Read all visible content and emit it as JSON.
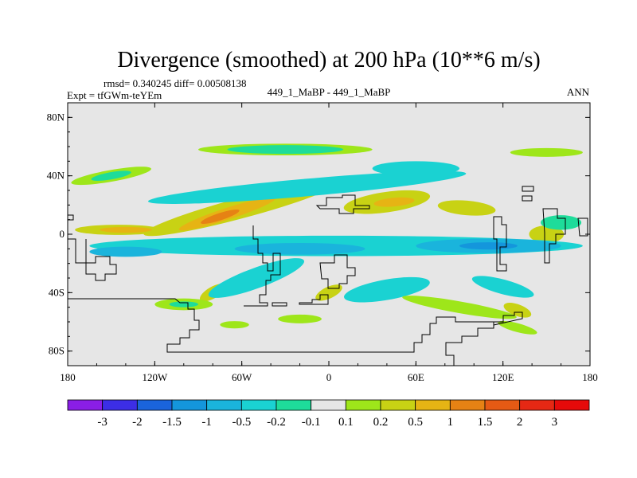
{
  "chart_data": {
    "type": "heatmap",
    "title": "Divergence (smoothed) at 200 hPa (10**6 m/s)",
    "stats_text": "rmsd= 0.340245 diff= 0.00508138",
    "left_label": "Expt = tfGWm-teYEm",
    "center_label": "449_1_MaBP - 449_1_MaBP",
    "right_label": "ANN",
    "xlim": [
      -180,
      180
    ],
    "ylim": [
      -90,
      90
    ],
    "x_ticks": [
      {
        "value": -180,
        "label": "180"
      },
      {
        "value": -120,
        "label": "120W"
      },
      {
        "value": -60,
        "label": "60W"
      },
      {
        "value": 0,
        "label": "0"
      },
      {
        "value": 60,
        "label": "60E"
      },
      {
        "value": 120,
        "label": "120E"
      },
      {
        "value": 180,
        "label": "180"
      }
    ],
    "y_ticks": [
      {
        "value": 80,
        "label": "80N"
      },
      {
        "value": 40,
        "label": "40N"
      },
      {
        "value": 0,
        "label": "0"
      },
      {
        "value": -40,
        "label": "40S"
      },
      {
        "value": -80,
        "label": "80S"
      }
    ],
    "levels": [
      "-3",
      "-2",
      "-1.5",
      "-1",
      "-0.5",
      "-0.2",
      "-0.1",
      "0.1",
      "0.2",
      "0.5",
      "1",
      "1.5",
      "2",
      "3"
    ],
    "colors": [
      "#8a1ee6",
      "#3c2ee6",
      "#1a64dc",
      "#1496dc",
      "#1ab4dc",
      "#1ad2d2",
      "#1edc9a",
      "#e6e6e6",
      "#9ee61a",
      "#c8d214",
      "#e6b414",
      "#e68214",
      "#e65a14",
      "#e62814",
      "#e60a0a"
    ],
    "background_bin": 7,
    "field_patches": [
      {
        "bin": 9,
        "cx": -60,
        "cy": 18,
        "rx": 70,
        "ry": 7,
        "rot": -15
      },
      {
        "bin": 10,
        "cx": -70,
        "cy": 14,
        "rx": 35,
        "ry": 4,
        "rot": -18
      },
      {
        "bin": 11,
        "cx": -75,
        "cy": 12,
        "rx": 14,
        "ry": 2.5,
        "rot": -18
      },
      {
        "bin": 9,
        "cx": 40,
        "cy": 22,
        "rx": 30,
        "ry": 7,
        "rot": -8
      },
      {
        "bin": 10,
        "cx": 45,
        "cy": 22,
        "rx": 14,
        "ry": 3,
        "rot": -5
      },
      {
        "bin": 9,
        "cx": -145,
        "cy": 3,
        "rx": 30,
        "ry": 3.5,
        "rot": 0
      },
      {
        "bin": 10,
        "cx": -140,
        "cy": 3,
        "rx": 18,
        "ry": 2,
        "rot": 0
      },
      {
        "bin": 9,
        "cx": 95,
        "cy": 18,
        "rx": 20,
        "ry": 5,
        "rot": 5
      },
      {
        "bin": 9,
        "cx": 150,
        "cy": 0,
        "rx": 12,
        "ry": 6,
        "rot": 0
      },
      {
        "bin": 9,
        "cx": -80,
        "cy": -40,
        "rx": 10,
        "ry": 4,
        "rot": -30
      },
      {
        "bin": 9,
        "cx": 0,
        "cy": -40,
        "rx": 10,
        "ry": 4,
        "rot": -25
      },
      {
        "bin": 9,
        "cx": 130,
        "cy": -52,
        "rx": 10,
        "ry": 4,
        "rot": 20
      },
      {
        "bin": 5,
        "cx": 5,
        "cy": -8,
        "rx": 170,
        "ry": 7,
        "rot": 0
      },
      {
        "bin": 4,
        "cx": -20,
        "cy": -10,
        "rx": 45,
        "ry": 4,
        "rot": 0
      },
      {
        "bin": 4,
        "cx": 110,
        "cy": -8,
        "rx": 50,
        "ry": 5,
        "rot": 0
      },
      {
        "bin": 3,
        "cx": 110,
        "cy": -8,
        "rx": 20,
        "ry": 2.5,
        "rot": 0
      },
      {
        "bin": 4,
        "cx": -140,
        "cy": -12,
        "rx": 25,
        "ry": 3.5,
        "rot": 0
      },
      {
        "bin": 5,
        "cx": -15,
        "cy": 32,
        "rx": 110,
        "ry": 6,
        "rot": -5
      },
      {
        "bin": 5,
        "cx": 60,
        "cy": 45,
        "rx": 30,
        "ry": 5,
        "rot": 0
      },
      {
        "bin": 5,
        "cx": -50,
        "cy": -30,
        "rx": 35,
        "ry": 7,
        "rot": -20
      },
      {
        "bin": 5,
        "cx": 40,
        "cy": -38,
        "rx": 30,
        "ry": 7,
        "rot": -10
      },
      {
        "bin": 5,
        "cx": 120,
        "cy": -36,
        "rx": 22,
        "ry": 5,
        "rot": 15
      },
      {
        "bin": 8,
        "cx": -30,
        "cy": 58,
        "rx": 60,
        "ry": 4,
        "rot": 0
      },
      {
        "bin": 8,
        "cx": 150,
        "cy": 56,
        "rx": 25,
        "ry": 3,
        "rot": 0
      },
      {
        "bin": 6,
        "cx": -30,
        "cy": 58,
        "rx": 40,
        "ry": 3,
        "rot": 0
      },
      {
        "bin": 8,
        "cx": -150,
        "cy": 40,
        "rx": 28,
        "ry": 4,
        "rot": -10
      },
      {
        "bin": 6,
        "cx": -150,
        "cy": 40,
        "rx": 14,
        "ry": 2.5,
        "rot": -10
      },
      {
        "bin": 8,
        "cx": 90,
        "cy": -50,
        "rx": 40,
        "ry": 4,
        "rot": 10
      },
      {
        "bin": 8,
        "cx": -100,
        "cy": -48,
        "rx": 20,
        "ry": 4,
        "rot": 0
      },
      {
        "bin": 6,
        "cx": -100,
        "cy": -48,
        "rx": 10,
        "ry": 2,
        "rot": 0
      },
      {
        "bin": 8,
        "cx": -20,
        "cy": -58,
        "rx": 15,
        "ry": 3,
        "rot": 0
      },
      {
        "bin": 8,
        "cx": 130,
        "cy": -64,
        "rx": 14,
        "ry": 3,
        "rot": 15
      },
      {
        "bin": 8,
        "cx": -65,
        "cy": -62,
        "rx": 10,
        "ry": 2.5,
        "rot": 0
      },
      {
        "bin": 6,
        "cx": 160,
        "cy": 8,
        "rx": 14,
        "ry": 5,
        "rot": 0
      }
    ]
  }
}
